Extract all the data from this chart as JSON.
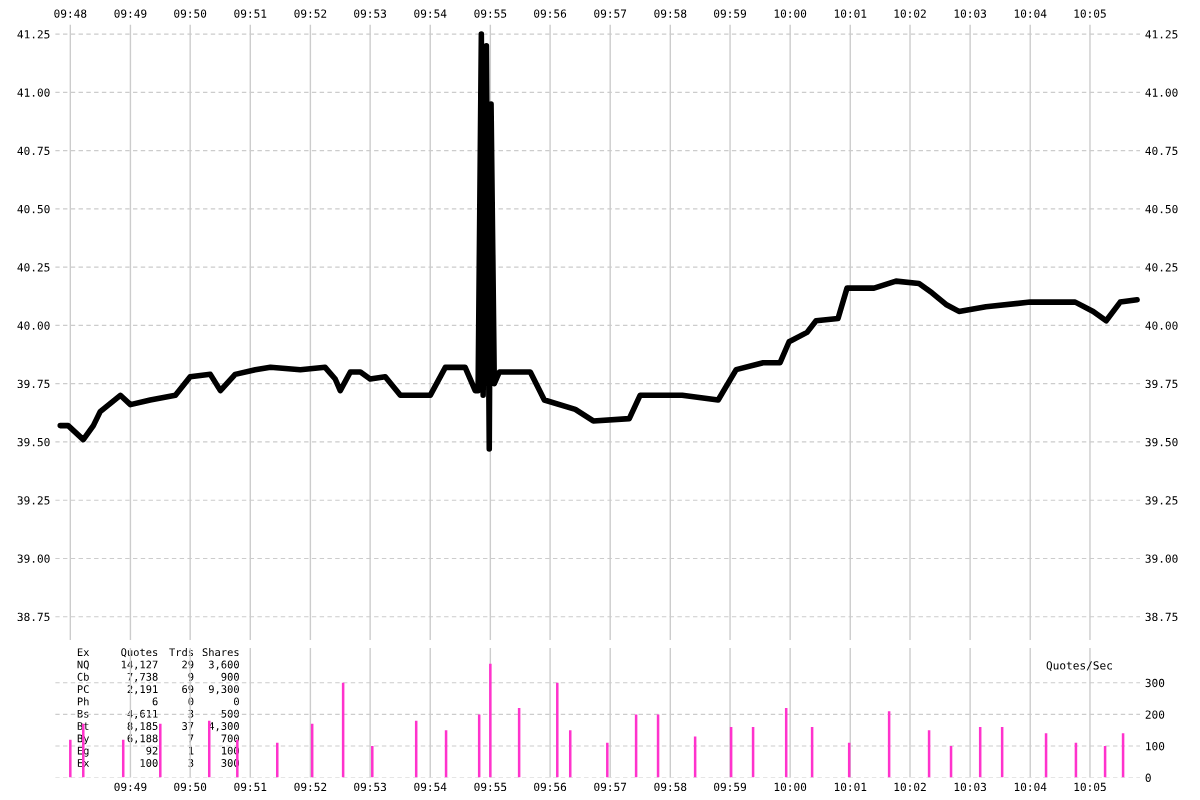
{
  "chart_data": [
    {
      "type": "line",
      "grid": true,
      "line_style": "solid",
      "marker": "none",
      "xlim": [
        9.7958,
        10.0972
      ],
      "ylim": [
        38.65,
        41.29
      ],
      "xticks": [
        {
          "value": 9.8,
          "label": "09:48"
        },
        {
          "value": 9.8167,
          "label": "09:49"
        },
        {
          "value": 9.8333,
          "label": "09:50"
        },
        {
          "value": 9.85,
          "label": "09:51"
        },
        {
          "value": 9.8667,
          "label": "09:52"
        },
        {
          "value": 9.8833,
          "label": "09:53"
        },
        {
          "value": 9.9,
          "label": "09:54"
        },
        {
          "value": 9.9167,
          "label": "09:55"
        },
        {
          "value": 9.9333,
          "label": "09:56"
        },
        {
          "value": 9.95,
          "label": "09:57"
        },
        {
          "value": 9.9667,
          "label": "09:58"
        },
        {
          "value": 9.9833,
          "label": "09:59"
        },
        {
          "value": 10.0,
          "label": "10:00"
        },
        {
          "value": 10.0167,
          "label": "10:01"
        },
        {
          "value": 10.0333,
          "label": "10:02"
        },
        {
          "value": 10.05,
          "label": "10:03"
        },
        {
          "value": 10.0667,
          "label": "10:04"
        },
        {
          "value": 10.0833,
          "label": "10:05"
        }
      ],
      "yticks": [
        {
          "value": 38.75,
          "label": "38.75"
        },
        {
          "value": 39.0,
          "label": "39.00"
        },
        {
          "value": 39.25,
          "label": "39.25"
        },
        {
          "value": 39.5,
          "label": "39.50"
        },
        {
          "value": 39.75,
          "label": "39.75"
        },
        {
          "value": 40.0,
          "label": "40.00"
        },
        {
          "value": 40.25,
          "label": "40.25"
        },
        {
          "value": 40.5,
          "label": "40.50"
        },
        {
          "value": 40.75,
          "label": "40.75"
        },
        {
          "value": 41.0,
          "label": "41.00"
        },
        {
          "value": 41.25,
          "label": "41.25"
        }
      ],
      "y2lim": [
        38.65,
        41.29
      ],
      "y2ticks": [
        {
          "value": 38.75,
          "label": "38.75"
        },
        {
          "value": 39.0,
          "label": "39.00"
        },
        {
          "value": 39.25,
          "label": "39.25"
        },
        {
          "value": 39.5,
          "label": "39.50"
        },
        {
          "value": 39.75,
          "label": "39.75"
        },
        {
          "value": 40.0,
          "label": "40.00"
        },
        {
          "value": 40.25,
          "label": "40.25"
        },
        {
          "value": 40.5,
          "label": "40.50"
        },
        {
          "value": 40.75,
          "label": "40.75"
        },
        {
          "value": 41.0,
          "label": "41.00"
        },
        {
          "value": 41.25,
          "label": "41.25"
        }
      ],
      "series": [
        {
          "color": "#000000",
          "x": [
            9.7972,
            9.7994,
            9.8036,
            9.8064,
            9.8083,
            9.8139,
            9.8167,
            9.8222,
            9.8292,
            9.8333,
            9.8389,
            9.8417,
            9.8458,
            9.8514,
            9.8556,
            9.8639,
            9.8708,
            9.8736,
            9.875,
            9.8778,
            9.8806,
            9.8833,
            9.8875,
            9.8917,
            9.9,
            9.9042,
            9.9097,
            9.9125,
            9.9133,
            9.9142,
            9.9147,
            9.9156,
            9.9164,
            9.9169,
            9.9178,
            9.9192,
            9.9278,
            9.9317,
            9.9403,
            9.9453,
            9.9553,
            9.9583,
            9.97,
            9.98,
            9.985,
            9.9925,
            9.9972,
            9.9997,
            10.0047,
            10.0072,
            10.0133,
            10.0158,
            10.0233,
            10.0294,
            10.0358,
            10.0394,
            10.0433,
            10.0469,
            10.0544,
            10.0667,
            10.0792,
            10.0842,
            10.0878,
            10.0917,
            10.0964
          ],
          "values": [
            39.57,
            39.57,
            39.51,
            39.57,
            39.63,
            39.7,
            39.66,
            39.68,
            39.7,
            39.78,
            39.79,
            39.72,
            39.79,
            39.81,
            39.82,
            39.81,
            39.82,
            39.77,
            39.72,
            39.8,
            39.8,
            39.77,
            39.78,
            39.7,
            39.7,
            39.82,
            39.82,
            39.72,
            39.72,
            41.25,
            39.7,
            41.2,
            39.47,
            40.95,
            39.75,
            39.8,
            39.8,
            39.68,
            39.64,
            39.59,
            39.6,
            39.7,
            39.7,
            39.68,
            39.81,
            39.84,
            39.84,
            39.93,
            39.97,
            40.02,
            40.03,
            40.16,
            40.16,
            40.19,
            40.18,
            40.14,
            40.09,
            40.06,
            40.08,
            40.1,
            40.1,
            40.06,
            40.02,
            40.1,
            40.11
          ]
        }
      ]
    },
    {
      "type": "bar",
      "grid": true,
      "ylabel": "Quotes/Sec",
      "xlim": [
        9.7958,
        10.0972
      ],
      "xticks": [
        {
          "value": 9.8167,
          "label": "09:49"
        },
        {
          "value": 9.8333,
          "label": "09:50"
        },
        {
          "value": 9.85,
          "label": "09:51"
        },
        {
          "value": 9.8667,
          "label": "09:52"
        },
        {
          "value": 9.8833,
          "label": "09:53"
        },
        {
          "value": 9.9,
          "label": "09:54"
        },
        {
          "value": 9.9167,
          "label": "09:55"
        },
        {
          "value": 9.9333,
          "label": "09:56"
        },
        {
          "value": 9.95,
          "label": "09:57"
        },
        {
          "value": 9.9667,
          "label": "09:58"
        },
        {
          "value": 9.9833,
          "label": "09:59"
        },
        {
          "value": 10.0,
          "label": "10:00"
        },
        {
          "value": 10.0167,
          "label": "10:01"
        },
        {
          "value": 10.0333,
          "label": "10:02"
        },
        {
          "value": 10.05,
          "label": "10:03"
        },
        {
          "value": 10.0667,
          "label": "10:04"
        },
        {
          "value": 10.0833,
          "label": "10:05"
        }
      ],
      "y2lim": [
        0,
        410
      ],
      "y2ticks": [
        0,
        100,
        200,
        300
      ],
      "annotations": [
        "Ex Quotes Trds Shares",
        "NQ 14,127 29 3,600",
        "Cb 7,738 9 900",
        "PC 2,191 69 9,300",
        "Ph 6 0 0",
        "Bs 4,611 3 500",
        "Bt 8,185 37 4,300",
        "By 6,188 7 700",
        "Eg 92 1 100",
        "Ex 100 3 300"
      ],
      "series": [
        {
          "color": "#ff33cc",
          "axis": "y2",
          "x": [
            9.8,
            9.8036,
            9.8147,
            9.825,
            9.8386,
            9.8464,
            9.8575,
            9.8672,
            9.8758,
            9.8839,
            9.8961,
            9.9044,
            9.9136,
            9.9167,
            9.9247,
            9.9353,
            9.9389,
            9.9492,
            9.9572,
            9.9633,
            9.9736,
            9.9836,
            9.9897,
            9.9989,
            10.0061,
            10.0164,
            10.0275,
            10.0386,
            10.0447,
            10.0528,
            10.0589,
            10.0711,
            10.0794,
            10.0875,
            10.0925
          ],
          "values": [
            120,
            170,
            120,
            170,
            180,
            120,
            110,
            170,
            300,
            100,
            180,
            150,
            200,
            360,
            220,
            300,
            150,
            110,
            200,
            200,
            130,
            160,
            160,
            220,
            160,
            110,
            210,
            150,
            100,
            160,
            160,
            140,
            110,
            100,
            140
          ]
        }
      ]
    }
  ]
}
